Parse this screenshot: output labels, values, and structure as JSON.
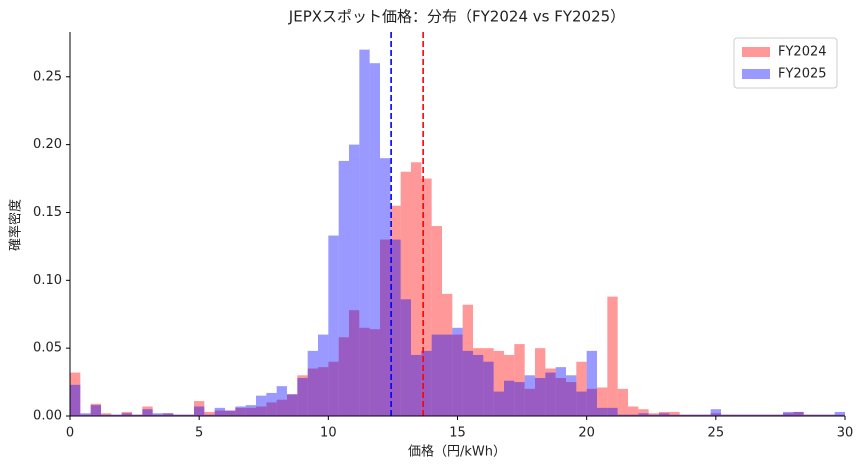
{
  "chart_data": {
    "type": "histogram",
    "title": "JEPXスポット価格：分布（FY2024 vs FY2025）",
    "x_label": "価格（円/kWh）",
    "y_label": "確率密度",
    "bins": [
      0,
      0.4,
      0.8,
      1.2,
      1.6,
      2,
      2.4,
      2.8,
      3.2,
      3.6,
      4,
      4.4,
      4.8,
      5.2,
      5.6,
      6,
      6.4,
      6.8,
      7.2,
      7.6,
      8,
      8.4,
      8.8,
      9.2,
      9.6,
      10,
      10.4,
      10.8,
      11.2,
      11.6,
      12,
      12.4,
      12.8,
      13.2,
      13.6,
      14,
      14.4,
      14.8,
      15.2,
      15.6,
      16,
      16.4,
      16.8,
      17.2,
      17.6,
      18,
      18.4,
      18.8,
      19.2,
      19.6,
      20,
      20.4,
      20.8,
      21.2,
      21.6,
      22,
      22.4,
      22.8,
      23.2,
      23.6,
      24,
      24.4,
      24.8,
      25.2,
      25.6,
      26,
      26.4,
      26.8,
      27.2,
      27.6,
      28,
      28.4,
      28.8,
      29.2,
      29.6,
      30
    ],
    "series": [
      {
        "name": "FY2024",
        "color": "#ff0000",
        "opacity": 0.4,
        "values": [
          0.032,
          0.001,
          0.009,
          0.002,
          0.001,
          0.003,
          0.001,
          0.007,
          0.001,
          0.002,
          0.001,
          0.001,
          0.011,
          0.003,
          0.004,
          0.004,
          0.006,
          0.006,
          0.007,
          0.01,
          0.012,
          0.016,
          0.03,
          0.035,
          0.036,
          0.04,
          0.058,
          0.078,
          0.065,
          0.064,
          0.13,
          0.155,
          0.18,
          0.187,
          0.175,
          0.14,
          0.09,
          0.06,
          0.082,
          0.05,
          0.05,
          0.048,
          0.045,
          0.053,
          0.02,
          0.05,
          0.035,
          0.028,
          0.025,
          0.04,
          0.02,
          0.021,
          0.088,
          0.02,
          0.007,
          0.005,
          0.002,
          0.003,
          0.003,
          0.001,
          0.001,
          0.001,
          0.002,
          0.001,
          0.001,
          0.001,
          0.001,
          0.001,
          0.001,
          0.002,
          0.003,
          0.001,
          0.001,
          0.001,
          0.001
        ],
        "mean": 13.67
      },
      {
        "name": "FY2025",
        "color": "#0000ff",
        "opacity": 0.4,
        "values": [
          0.023,
          0.002,
          0.008,
          0.001,
          0.001,
          0.002,
          0.001,
          0.005,
          0.002,
          0.002,
          0.001,
          0.001,
          0.007,
          0.001,
          0.006,
          0.004,
          0.007,
          0.008,
          0.015,
          0.017,
          0.022,
          0.016,
          0.028,
          0.048,
          0.06,
          0.133,
          0.188,
          0.2,
          0.27,
          0.26,
          0.19,
          0.13,
          0.086,
          0.045,
          0.048,
          0.06,
          0.06,
          0.065,
          0.048,
          0.045,
          0.04,
          0.018,
          0.026,
          0.025,
          0.03,
          0.028,
          0.032,
          0.036,
          0.03,
          0.018,
          0.048,
          0.006,
          0.006,
          0.001,
          0.001,
          0.002,
          0.001,
          0.002,
          0.001,
          0.001,
          0.001,
          0.001,
          0.005,
          0.001,
          0.001,
          0.001,
          0.001,
          0.001,
          0.001,
          0.003,
          0.003,
          0.001,
          0.001,
          0.001,
          0.003
        ],
        "mean": 12.43
      }
    ],
    "xlim": [
      0,
      30
    ],
    "xticks": [
      0,
      5,
      10,
      15,
      20,
      25,
      30
    ],
    "ylim": [
      0,
      0.283
    ],
    "yticks": [
      {
        "value": 0,
        "label": "0.00"
      },
      {
        "value": 0.05,
        "label": "0.05"
      },
      {
        "value": 0.1,
        "label": "0.10"
      },
      {
        "value": 0.15,
        "label": "0.15"
      },
      {
        "value": 0.2,
        "label": "0.20"
      },
      {
        "value": 0.25,
        "label": "0.25"
      }
    ],
    "legend": "upper right",
    "grid": false
  }
}
